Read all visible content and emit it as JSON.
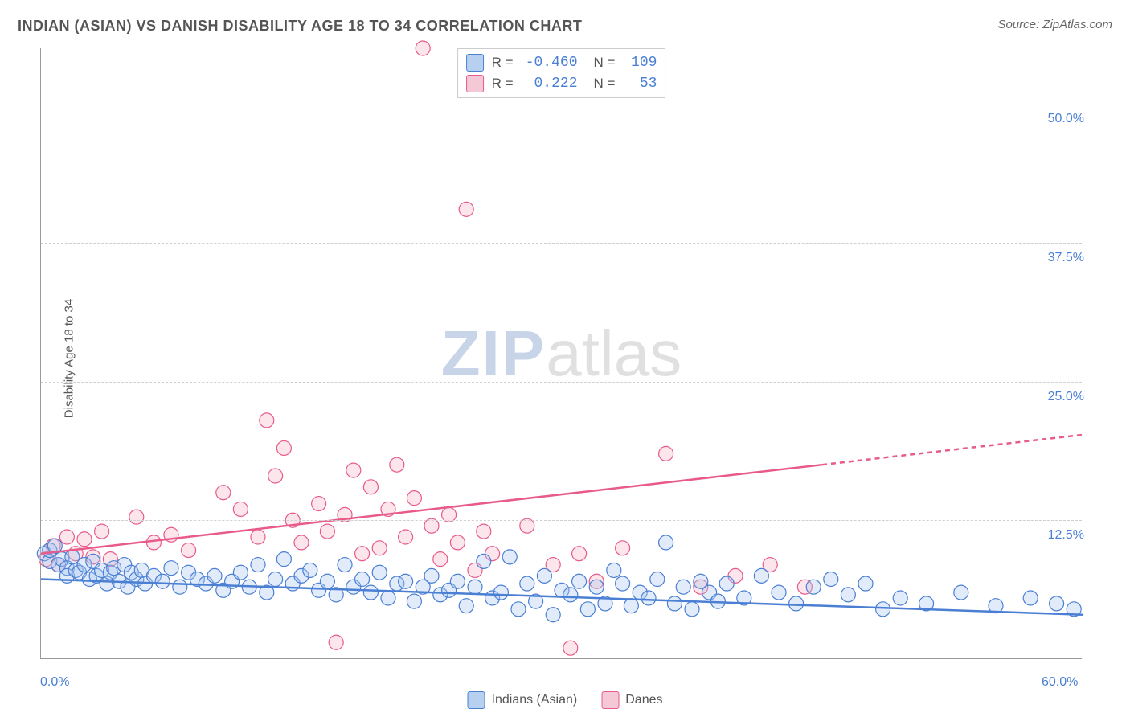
{
  "title": "INDIAN (ASIAN) VS DANISH DISABILITY AGE 18 TO 34 CORRELATION CHART",
  "source": "Source: ZipAtlas.com",
  "ylabel": "Disability Age 18 to 34",
  "watermark_zip": "ZIP",
  "watermark_atlas": "atlas",
  "chart": {
    "type": "scatter",
    "xlim": [
      0,
      60
    ],
    "ylim": [
      0,
      55
    ],
    "xticks": [
      {
        "value": 0,
        "label": "0.0%"
      },
      {
        "value": 60,
        "label": "60.0%"
      }
    ],
    "yticks": [
      {
        "value": 12.5,
        "label": "12.5%"
      },
      {
        "value": 25.0,
        "label": "25.0%"
      },
      {
        "value": 37.5,
        "label": "37.5%"
      },
      {
        "value": 50.0,
        "label": "50.0%"
      }
    ],
    "grid_color": "#d0d0d0",
    "axis_color": "#999999",
    "background_color": "#ffffff",
    "watermark_color_1": "#c8d4e8",
    "watermark_color_2": "#e0e0e0",
    "marker_radius": 9,
    "marker_stroke_width": 1.2,
    "marker_fill_opacity": 0.35,
    "series": [
      {
        "name": "Indians (Asian)",
        "color_fill": "#a8c6f0",
        "color_stroke": "#4a7fd4",
        "swatch_fill": "#b8d0f0",
        "swatch_stroke": "#4a7fd4",
        "R": "-0.460",
        "N": "109",
        "trend": {
          "x1": 0,
          "y1": 7.2,
          "x2": 60,
          "y2": 4.0,
          "dash_from": 60
        },
        "trend_width": 2.5,
        "points": [
          [
            0.2,
            9.5
          ],
          [
            0.5,
            8.8
          ],
          [
            0.5,
            9.8
          ],
          [
            0.8,
            10.2
          ],
          [
            1.0,
            8.5
          ],
          [
            1.2,
            9.0
          ],
          [
            1.5,
            8.2
          ],
          [
            1.5,
            7.5
          ],
          [
            1.8,
            9.2
          ],
          [
            2.0,
            8.0
          ],
          [
            2.2,
            7.8
          ],
          [
            2.5,
            8.5
          ],
          [
            2.8,
            7.2
          ],
          [
            3.0,
            8.8
          ],
          [
            3.2,
            7.5
          ],
          [
            3.5,
            8.0
          ],
          [
            3.8,
            6.8
          ],
          [
            4.0,
            7.8
          ],
          [
            4.2,
            8.2
          ],
          [
            4.5,
            7.0
          ],
          [
            4.8,
            8.5
          ],
          [
            5.0,
            6.5
          ],
          [
            5.2,
            7.8
          ],
          [
            5.5,
            7.2
          ],
          [
            5.8,
            8.0
          ],
          [
            6.0,
            6.8
          ],
          [
            6.5,
            7.5
          ],
          [
            7.0,
            7.0
          ],
          [
            7.5,
            8.2
          ],
          [
            8.0,
            6.5
          ],
          [
            8.5,
            7.8
          ],
          [
            9.0,
            7.2
          ],
          [
            9.5,
            6.8
          ],
          [
            10.0,
            7.5
          ],
          [
            10.5,
            6.2
          ],
          [
            11.0,
            7.0
          ],
          [
            11.5,
            7.8
          ],
          [
            12.0,
            6.5
          ],
          [
            12.5,
            8.5
          ],
          [
            13.0,
            6.0
          ],
          [
            13.5,
            7.2
          ],
          [
            14.0,
            9.0
          ],
          [
            14.5,
            6.8
          ],
          [
            15.0,
            7.5
          ],
          [
            15.5,
            8.0
          ],
          [
            16.0,
            6.2
          ],
          [
            16.5,
            7.0
          ],
          [
            17.0,
            5.8
          ],
          [
            17.5,
            8.5
          ],
          [
            18.0,
            6.5
          ],
          [
            18.5,
            7.2
          ],
          [
            19.0,
            6.0
          ],
          [
            19.5,
            7.8
          ],
          [
            20.0,
            5.5
          ],
          [
            20.5,
            6.8
          ],
          [
            21.0,
            7.0
          ],
          [
            21.5,
            5.2
          ],
          [
            22.0,
            6.5
          ],
          [
            22.5,
            7.5
          ],
          [
            23.0,
            5.8
          ],
          [
            23.5,
            6.2
          ],
          [
            24.0,
            7.0
          ],
          [
            24.5,
            4.8
          ],
          [
            25.0,
            6.5
          ],
          [
            25.5,
            8.8
          ],
          [
            26.0,
            5.5
          ],
          [
            26.5,
            6.0
          ],
          [
            27.0,
            9.2
          ],
          [
            27.5,
            4.5
          ],
          [
            28.0,
            6.8
          ],
          [
            28.5,
            5.2
          ],
          [
            29.0,
            7.5
          ],
          [
            29.5,
            4.0
          ],
          [
            30.0,
            6.2
          ],
          [
            30.5,
            5.8
          ],
          [
            31.0,
            7.0
          ],
          [
            31.5,
            4.5
          ],
          [
            32.0,
            6.5
          ],
          [
            32.5,
            5.0
          ],
          [
            33.0,
            8.0
          ],
          [
            33.5,
            6.8
          ],
          [
            34.0,
            4.8
          ],
          [
            34.5,
            6.0
          ],
          [
            35.0,
            5.5
          ],
          [
            35.5,
            7.2
          ],
          [
            36.0,
            10.5
          ],
          [
            36.5,
            5.0
          ],
          [
            37.0,
            6.5
          ],
          [
            37.5,
            4.5
          ],
          [
            38.0,
            7.0
          ],
          [
            38.5,
            6.0
          ],
          [
            39.0,
            5.2
          ],
          [
            39.5,
            6.8
          ],
          [
            40.5,
            5.5
          ],
          [
            41.5,
            7.5
          ],
          [
            42.5,
            6.0
          ],
          [
            43.5,
            5.0
          ],
          [
            44.5,
            6.5
          ],
          [
            45.5,
            7.2
          ],
          [
            46.5,
            5.8
          ],
          [
            47.5,
            6.8
          ],
          [
            48.5,
            4.5
          ],
          [
            49.5,
            5.5
          ],
          [
            51.0,
            5.0
          ],
          [
            53.0,
            6.0
          ],
          [
            55.0,
            4.8
          ],
          [
            57.0,
            5.5
          ],
          [
            58.5,
            5.0
          ],
          [
            59.5,
            4.5
          ]
        ]
      },
      {
        "name": "Danes",
        "color_fill": "#f5b8c8",
        "color_stroke": "#e85a8a",
        "swatch_fill": "#f5c8d5",
        "swatch_stroke": "#e85a8a",
        "R": "0.222",
        "N": "53",
        "trend": {
          "x1": 0,
          "y1": 9.5,
          "x2": 45,
          "y2": 17.5,
          "dash_from": 45,
          "x2_ext": 60,
          "y2_ext": 20.2
        },
        "trend_width": 2.5,
        "points": [
          [
            0.3,
            9.0
          ],
          [
            0.7,
            10.2
          ],
          [
            1.0,
            8.5
          ],
          [
            1.5,
            11.0
          ],
          [
            2.0,
            9.5
          ],
          [
            2.5,
            10.8
          ],
          [
            3.0,
            9.2
          ],
          [
            3.5,
            11.5
          ],
          [
            4.0,
            9.0
          ],
          [
            5.5,
            12.8
          ],
          [
            6.5,
            10.5
          ],
          [
            7.5,
            11.2
          ],
          [
            8.5,
            9.8
          ],
          [
            10.5,
            15.0
          ],
          [
            11.5,
            13.5
          ],
          [
            12.5,
            11.0
          ],
          [
            13.0,
            21.5
          ],
          [
            13.5,
            16.5
          ],
          [
            14.0,
            19.0
          ],
          [
            14.5,
            12.5
          ],
          [
            15.0,
            10.5
          ],
          [
            16.0,
            14.0
          ],
          [
            16.5,
            11.5
          ],
          [
            17.0,
            1.5
          ],
          [
            17.5,
            13.0
          ],
          [
            18.0,
            17.0
          ],
          [
            18.5,
            9.5
          ],
          [
            19.0,
            15.5
          ],
          [
            19.5,
            10.0
          ],
          [
            20.0,
            13.5
          ],
          [
            20.5,
            17.5
          ],
          [
            21.0,
            11.0
          ],
          [
            21.5,
            14.5
          ],
          [
            22.0,
            55.0
          ],
          [
            22.5,
            12.0
          ],
          [
            23.0,
            9.0
          ],
          [
            23.5,
            13.0
          ],
          [
            24.0,
            10.5
          ],
          [
            24.5,
            40.5
          ],
          [
            25.0,
            8.0
          ],
          [
            25.5,
            11.5
          ],
          [
            26.0,
            9.5
          ],
          [
            28.0,
            12.0
          ],
          [
            29.5,
            8.5
          ],
          [
            30.5,
            1.0
          ],
          [
            31.0,
            9.5
          ],
          [
            32.0,
            7.0
          ],
          [
            33.5,
            10.0
          ],
          [
            36.0,
            18.5
          ],
          [
            38.0,
            6.5
          ],
          [
            40.0,
            7.5
          ],
          [
            42.0,
            8.5
          ],
          [
            44.0,
            6.5
          ]
        ]
      }
    ]
  },
  "legend_bottom": [
    {
      "label": "Indians (Asian)",
      "series": 0
    },
    {
      "label": "Danes",
      "series": 1
    }
  ]
}
